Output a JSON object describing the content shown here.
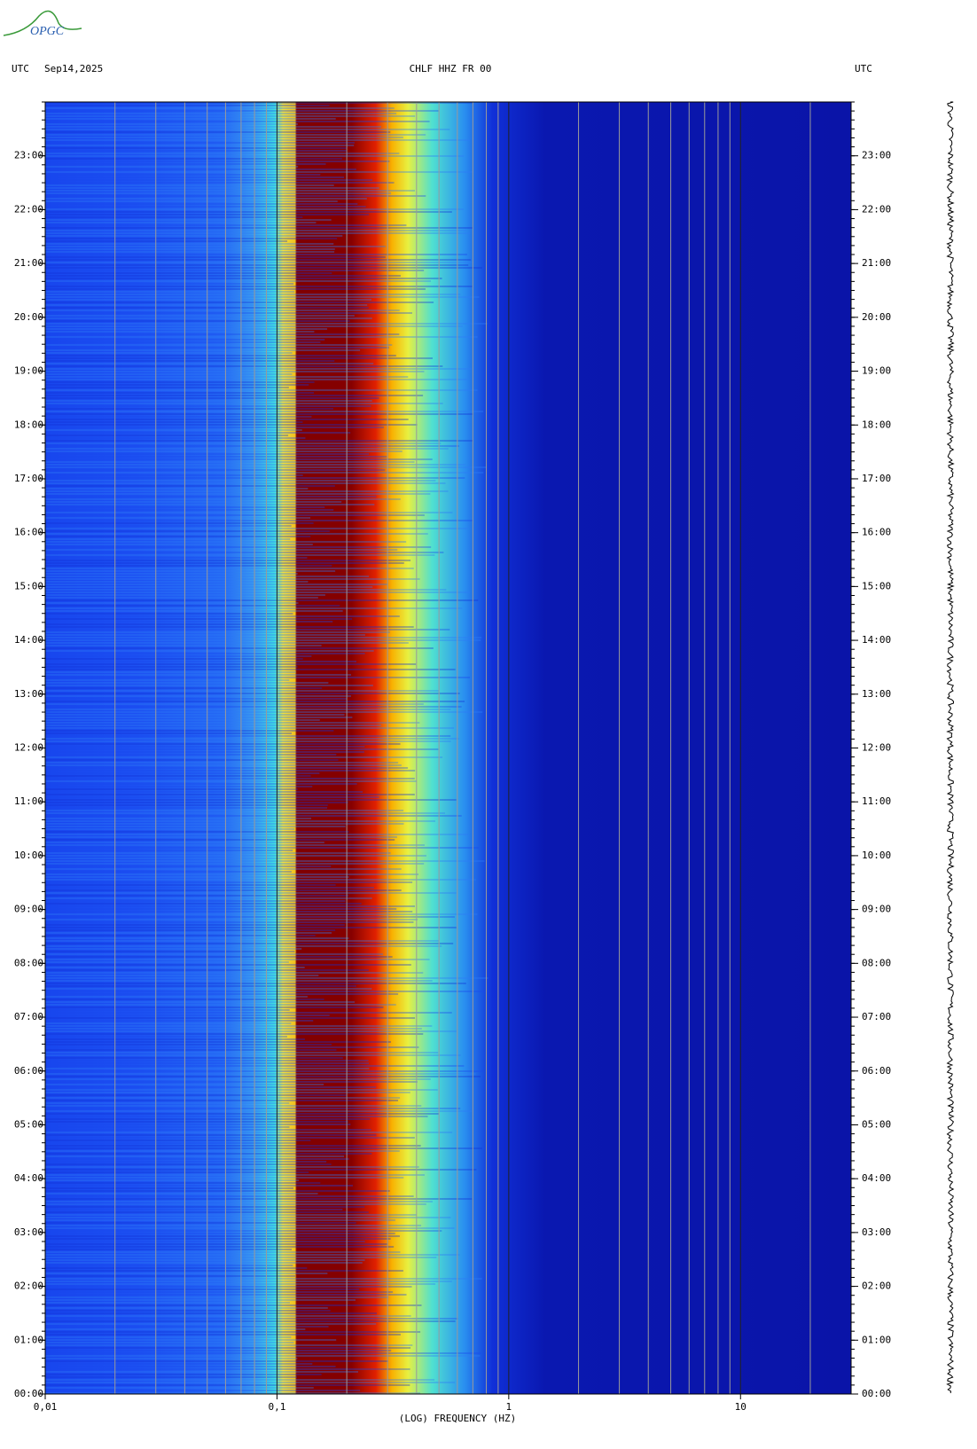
{
  "logo": "OPGC",
  "chart_data": {
    "type": "spectrogram",
    "title": "CHLF HHZ FR 00",
    "date": "Sep14,2025",
    "left_label": "UTC",
    "right_label": "UTC",
    "xlabel": "(LOG) FREQUENCY (HZ)",
    "xscale": "log",
    "xlim": [
      0.01,
      30
    ],
    "xticks": [
      {
        "value": 0.01,
        "label": "0,01"
      },
      {
        "value": 0.1,
        "label": "0,1"
      },
      1,
      10
    ],
    "ylim": [
      0,
      24
    ],
    "yticks": [
      {
        "value": 0,
        "label": "00:00"
      },
      {
        "value": 1,
        "label": "01:00"
      },
      {
        "value": 2,
        "label": "02:00"
      },
      {
        "value": 3,
        "label": "03:00"
      },
      {
        "value": 4,
        "label": "04:00"
      },
      {
        "value": 5,
        "label": "05:00"
      },
      {
        "value": 6,
        "label": "06:00"
      },
      {
        "value": 7,
        "label": "07:00"
      },
      {
        "value": 8,
        "label": "08:00"
      },
      {
        "value": 9,
        "label": "09:00"
      },
      {
        "value": 10,
        "label": "10:00"
      },
      {
        "value": 11,
        "label": "11:00"
      },
      {
        "value": 12,
        "label": "12:00"
      },
      {
        "value": 13,
        "label": "13:00"
      },
      {
        "value": 14,
        "label": "14:00"
      },
      {
        "value": 15,
        "label": "15:00"
      },
      {
        "value": 16,
        "label": "16:00"
      },
      {
        "value": 17,
        "label": "17:00"
      },
      {
        "value": 18,
        "label": "18:00"
      },
      {
        "value": 19,
        "label": "19:00"
      },
      {
        "value": 20,
        "label": "20:00"
      },
      {
        "value": 21,
        "label": "21:00"
      },
      {
        "value": 22,
        "label": "22:00"
      },
      {
        "value": 23,
        "label": "23:00"
      }
    ]
  }
}
